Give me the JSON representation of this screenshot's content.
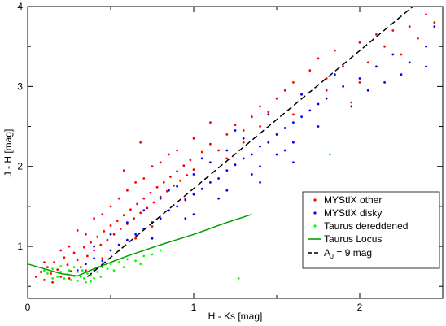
{
  "chart_data": {
    "type": "scatter",
    "title": "",
    "xlabel": "H - Ks [mag]",
    "ylabel": "J - H [mag]",
    "xlim": [
      0,
      2.5
    ],
    "ylim": [
      0.35,
      4
    ],
    "x_ticks": [
      "0",
      "1",
      "2"
    ],
    "y_ticks": [
      "1",
      "2",
      "3",
      "4"
    ],
    "grid": false,
    "legend_position": "lower-right",
    "series": [
      {
        "name": "MYStIX other",
        "color": "#ff0000",
        "marker": "dot",
        "points": [
          [
            0.05,
            0.62
          ],
          [
            0.08,
            0.68
          ],
          [
            0.1,
            0.58
          ],
          [
            0.12,
            0.74
          ],
          [
            0.14,
            0.66
          ],
          [
            0.16,
            0.8
          ],
          [
            0.18,
            0.71
          ],
          [
            0.2,
            0.62
          ],
          [
            0.22,
            0.86
          ],
          [
            0.24,
            0.77
          ],
          [
            0.26,
            0.69
          ],
          [
            0.28,
            0.92
          ],
          [
            0.3,
            0.83
          ],
          [
            0.32,
            0.74
          ],
          [
            0.34,
            0.99
          ],
          [
            0.36,
            0.88
          ],
          [
            0.38,
            1.05
          ],
          [
            0.4,
            0.95
          ],
          [
            0.42,
            1.12
          ],
          [
            0.44,
            1.02
          ],
          [
            0.46,
            1.19
          ],
          [
            0.48,
            1.08
          ],
          [
            0.5,
            1.26
          ],
          [
            0.52,
            1.15
          ],
          [
            0.54,
            1.32
          ],
          [
            0.56,
            1.22
          ],
          [
            0.58,
            1.39
          ],
          [
            0.6,
            1.28
          ],
          [
            0.62,
            1.46
          ],
          [
            0.64,
            1.35
          ],
          [
            0.66,
            1.53
          ],
          [
            0.68,
            1.42
          ],
          [
            0.7,
            1.6
          ],
          [
            0.72,
            1.48
          ],
          [
            0.74,
            1.67
          ],
          [
            0.76,
            1.55
          ],
          [
            0.78,
            1.74
          ],
          [
            0.8,
            1.62
          ],
          [
            0.82,
            1.8
          ],
          [
            0.84,
            1.69
          ],
          [
            0.86,
            1.87
          ],
          [
            0.88,
            1.76
          ],
          [
            0.9,
            1.94
          ],
          [
            0.92,
            1.82
          ],
          [
            0.94,
            2.01
          ],
          [
            0.96,
            1.89
          ],
          [
            0.98,
            2.08
          ],
          [
            1.0,
            1.96
          ],
          [
            1.05,
            2.18
          ],
          [
            1.1,
            2.28
          ],
          [
            1.15,
            2.2
          ],
          [
            1.2,
            2.4
          ],
          [
            1.25,
            2.52
          ],
          [
            1.3,
            2.45
          ],
          [
            1.35,
            2.62
          ],
          [
            1.4,
            2.75
          ],
          [
            1.45,
            2.68
          ],
          [
            1.5,
            2.85
          ],
          [
            1.55,
            2.95
          ],
          [
            1.6,
            3.05
          ],
          [
            1.65,
            2.9
          ],
          [
            1.7,
            3.2
          ],
          [
            1.75,
            3.35
          ],
          [
            1.8,
            3.1
          ],
          [
            1.85,
            3.45
          ],
          [
            1.9,
            3.25
          ],
          [
            1.95,
            2.8
          ],
          [
            2.0,
            3.55
          ],
          [
            2.05,
            3.3
          ],
          [
            2.1,
            3.65
          ],
          [
            2.15,
            3.5
          ],
          [
            2.2,
            3.7
          ],
          [
            2.25,
            3.4
          ],
          [
            2.3,
            3.75
          ],
          [
            2.35,
            3.6
          ],
          [
            2.4,
            3.9
          ],
          [
            2.45,
            3.8
          ],
          [
            0.15,
            0.55
          ],
          [
            0.25,
            0.6
          ],
          [
            0.35,
            0.7
          ],
          [
            0.45,
            0.85
          ],
          [
            0.55,
            0.95
          ],
          [
            0.65,
            1.1
          ],
          [
            0.75,
            1.25
          ],
          [
            0.85,
            1.45
          ],
          [
            0.95,
            1.6
          ],
          [
            0.3,
            1.2
          ],
          [
            0.4,
            1.35
          ],
          [
            0.5,
            1.5
          ],
          [
            0.6,
            1.7
          ],
          [
            0.7,
            1.85
          ],
          [
            0.8,
            2.05
          ],
          [
            0.9,
            2.2
          ],
          [
            1.0,
            2.35
          ],
          [
            0.2,
            0.95
          ],
          [
            0.35,
            1.15
          ],
          [
            0.55,
            1.6
          ],
          [
            0.75,
            2.0
          ],
          [
            1.1,
            2.55
          ],
          [
            1.2,
            2.1
          ],
          [
            1.3,
            2.3
          ],
          [
            0.1,
            0.8
          ],
          [
            0.25,
            1.0
          ],
          [
            0.45,
            1.4
          ],
          [
            0.65,
            1.8
          ],
          [
            0.85,
            2.15
          ],
          [
            1.4,
            2.5
          ],
          [
            1.6,
            2.65
          ],
          [
            1.8,
            2.95
          ],
          [
            2.0,
            3.05
          ],
          [
            0.58,
            1.95
          ],
          [
            0.68,
            2.3
          ]
        ]
      },
      {
        "name": "MYStIX disky",
        "color": "#0000ff",
        "marker": "dot",
        "points": [
          [
            0.3,
            0.7
          ],
          [
            0.35,
            0.78
          ],
          [
            0.4,
            0.85
          ],
          [
            0.45,
            0.82
          ],
          [
            0.5,
            0.95
          ],
          [
            0.55,
            1.02
          ],
          [
            0.6,
            1.08
          ],
          [
            0.65,
            1.15
          ],
          [
            0.7,
            1.22
          ],
          [
            0.75,
            1.3
          ],
          [
            0.8,
            1.35
          ],
          [
            0.85,
            1.45
          ],
          [
            0.9,
            1.5
          ],
          [
            0.95,
            1.58
          ],
          [
            1.0,
            1.65
          ],
          [
            1.05,
            1.72
          ],
          [
            1.1,
            1.8
          ],
          [
            1.15,
            1.85
          ],
          [
            1.2,
            1.95
          ],
          [
            1.25,
            2.02
          ],
          [
            1.3,
            2.1
          ],
          [
            1.35,
            2.15
          ],
          [
            1.4,
            2.25
          ],
          [
            1.45,
            2.3
          ],
          [
            1.5,
            2.4
          ],
          [
            1.55,
            2.48
          ],
          [
            1.6,
            2.55
          ],
          [
            1.65,
            2.62
          ],
          [
            1.7,
            2.7
          ],
          [
            1.75,
            2.78
          ],
          [
            1.8,
            2.85
          ],
          [
            1.9,
            3.0
          ],
          [
            2.0,
            3.1
          ],
          [
            2.1,
            3.25
          ],
          [
            2.2,
            3.4
          ],
          [
            2.3,
            3.3
          ],
          [
            2.4,
            3.5
          ],
          [
            2.45,
            3.75
          ],
          [
            0.6,
            1.3
          ],
          [
            0.7,
            1.45
          ],
          [
            0.8,
            1.6
          ],
          [
            0.9,
            1.75
          ],
          [
            1.0,
            1.9
          ],
          [
            1.1,
            2.05
          ],
          [
            1.2,
            2.2
          ],
          [
            1.3,
            2.35
          ],
          [
            1.4,
            2.0
          ],
          [
            1.5,
            2.15
          ],
          [
            1.6,
            2.3
          ],
          [
            0.5,
            1.15
          ],
          [
            0.75,
            1.1
          ],
          [
            0.95,
            1.35
          ],
          [
            1.15,
            1.6
          ],
          [
            1.35,
            1.9
          ],
          [
            1.55,
            2.2
          ],
          [
            1.75,
            2.5
          ],
          [
            1.95,
            2.75
          ],
          [
            0.4,
            1.0
          ],
          [
            0.85,
            1.7
          ],
          [
            1.05,
            2.1
          ],
          [
            1.25,
            2.45
          ],
          [
            1.45,
            2.65
          ],
          [
            1.65,
            2.9
          ],
          [
            1.85,
            3.15
          ],
          [
            2.05,
            2.95
          ],
          [
            2.15,
            3.05
          ],
          [
            2.25,
            3.15
          ],
          [
            2.4,
            3.25
          ],
          [
            1.0,
            1.4
          ],
          [
            1.2,
            1.7
          ],
          [
            1.4,
            1.8
          ],
          [
            1.6,
            2.05
          ]
        ]
      },
      {
        "name": "Taurus dereddened",
        "color": "#00ff00",
        "marker": "dot",
        "points": [
          [
            0.1,
            0.7
          ],
          [
            0.12,
            0.66
          ],
          [
            0.15,
            0.72
          ],
          [
            0.18,
            0.62
          ],
          [
            0.2,
            0.68
          ],
          [
            0.22,
            0.6
          ],
          [
            0.24,
            0.65
          ],
          [
            0.26,
            0.58
          ],
          [
            0.28,
            0.63
          ],
          [
            0.3,
            0.57
          ],
          [
            0.32,
            0.62
          ],
          [
            0.34,
            0.6
          ],
          [
            0.36,
            0.66
          ],
          [
            0.38,
            0.64
          ],
          [
            0.4,
            0.7
          ],
          [
            0.42,
            0.68
          ],
          [
            0.45,
            0.74
          ],
          [
            0.48,
            0.72
          ],
          [
            0.5,
            0.78
          ],
          [
            0.55,
            0.8
          ],
          [
            0.6,
            0.84
          ],
          [
            0.65,
            0.82
          ],
          [
            0.7,
            0.88
          ],
          [
            0.75,
            0.9
          ],
          [
            0.8,
            0.95
          ],
          [
            0.25,
            0.7
          ],
          [
            0.3,
            0.68
          ],
          [
            0.35,
            0.55
          ],
          [
            0.2,
            0.75
          ],
          [
            0.4,
            0.6
          ],
          [
            1.27,
            0.6
          ],
          [
            1.82,
            2.15
          ],
          [
            0.15,
            0.6
          ],
          [
            0.28,
            0.74
          ],
          [
            0.33,
            0.7
          ],
          [
            0.38,
            0.56
          ],
          [
            0.44,
            0.62
          ],
          [
            0.52,
            0.7
          ],
          [
            0.58,
            0.74
          ],
          [
            0.68,
            0.78
          ]
        ]
      }
    ],
    "lines": [
      {
        "name": "Taurus Locus",
        "color": "#00a000",
        "style": "solid",
        "x": [
          0.0,
          0.1,
          0.2,
          0.3,
          0.4,
          0.6,
          0.8,
          1.0,
          1.2,
          1.35
        ],
        "y": [
          0.78,
          0.72,
          0.66,
          0.63,
          0.72,
          0.88,
          1.02,
          1.15,
          1.3,
          1.4
        ]
      },
      {
        "name": "A_J = 9 mag",
        "color": "#000000",
        "style": "dashed",
        "x": [
          0.36,
          2.32
        ],
        "y": [
          0.62,
          4.0
        ]
      }
    ],
    "legend": [
      {
        "label": "MYStIX other",
        "kind": "dot",
        "color": "#ff0000"
      },
      {
        "label": "MYStIX disky",
        "kind": "dot",
        "color": "#0000ff"
      },
      {
        "label": "Taurus dereddened",
        "kind": "dot",
        "color": "#00ff00"
      },
      {
        "label": "Taurus Locus",
        "kind": "line",
        "color": "#00a000"
      },
      {
        "label_main": "A",
        "label_sub": "J",
        "label_rest": " = 9 mag",
        "kind": "dash",
        "color": "#000000"
      }
    ]
  }
}
